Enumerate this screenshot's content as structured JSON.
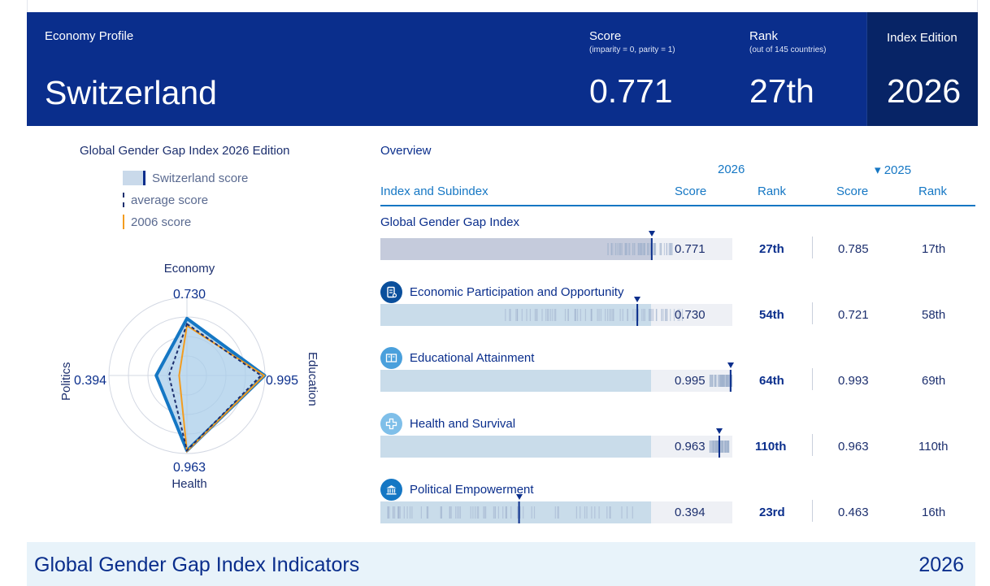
{
  "header": {
    "profile_label": "Economy Profile",
    "country": "Switzerland",
    "score_label": "Score",
    "score_sub": "(imparity = 0, parity = 1)",
    "score_value": "0.771",
    "rank_label": "Rank",
    "rank_sub": "(out of 145 countries)",
    "rank_value": "27th",
    "edition_label": "Index Edition",
    "edition_value": "2026"
  },
  "radar": {
    "title": "Global Gender Gap Index 2026 Edition",
    "legend": {
      "country_score": "Switzerland score",
      "average_score": "average score",
      "score_2006": "2006 score"
    },
    "axes": {
      "economy": "Economy",
      "education": "Education",
      "health": "Health",
      "politics": "Politics"
    },
    "values": {
      "economy": "0.730",
      "education": "0.995",
      "health": "0.963",
      "politics": "0.394"
    },
    "country_values": [
      0.73,
      0.995,
      0.963,
      0.394
    ],
    "average_values": [
      0.66,
      0.95,
      0.96,
      0.23
    ],
    "values_2006": [
      0.64,
      0.99,
      0.97,
      0.1
    ],
    "colors": {
      "country_fill": "#a9cdea",
      "country_stroke": "#1577c4",
      "average": "#1c2f6e",
      "y2006": "#f39c1f"
    }
  },
  "overview": {
    "title": "Overview",
    "year_current": "2026",
    "year_prev": "▾ 2025",
    "col_index": "Index and Subindex",
    "col_score": "Score",
    "col_rank": "Rank",
    "col_score_prev": "Score",
    "col_rank_prev": "Rank",
    "rows": [
      {
        "title": "Global Gender Gap Index",
        "icon": "",
        "score": "0.771",
        "score_num": 0.771,
        "rank": "27th",
        "score_prev": "0.785",
        "rank_prev": "17th"
      },
      {
        "title": "Economic Participation and Opportunity",
        "icon": "document-icon",
        "score": "0.730",
        "score_num": 0.73,
        "rank": "54th",
        "score_prev": "0.721",
        "rank_prev": "58th"
      },
      {
        "title": "Educational Attainment",
        "icon": "book-icon",
        "score": "0.995",
        "score_num": 0.995,
        "rank": "64th",
        "score_prev": "0.993",
        "rank_prev": "69th"
      },
      {
        "title": "Health and Survival",
        "icon": "health-cross-icon",
        "score": "0.963",
        "score_num": 0.963,
        "rank": "110th",
        "score_prev": "0.963",
        "rank_prev": "110th"
      },
      {
        "title": "Political Empowerment",
        "icon": "government-building-icon",
        "score": "0.394",
        "score_num": 0.394,
        "rank": "23rd",
        "score_prev": "0.463",
        "rank_prev": "16th"
      }
    ]
  },
  "footer": {
    "title": "Global Gender Gap Index Indicators",
    "year": "2026"
  }
}
